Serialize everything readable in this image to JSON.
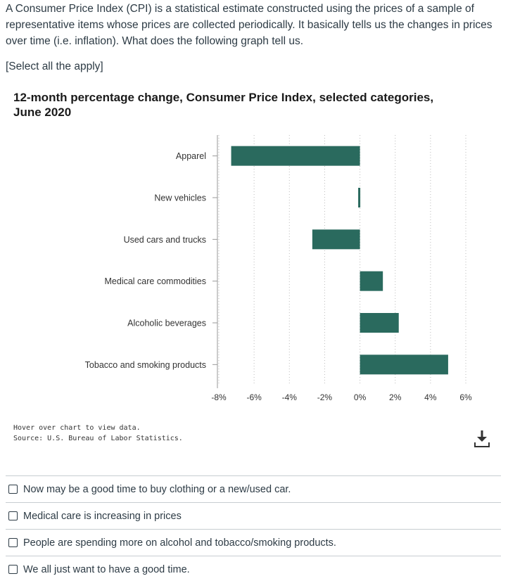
{
  "question": {
    "lines": [
      "A Consumer Price Index (CPI) is a statistical estimate constructed using the prices of a sample of",
      "representative items whose prices are collected periodically. It basically tells us the changes in prices",
      "over time (i.e. inflation). What does the following graph tell us."
    ],
    "instruction": "[Select all the apply]"
  },
  "chart_data": {
    "type": "bar",
    "orientation": "horizontal",
    "title_lines": [
      "12-month percentage change, Consumer Price Index, selected categories,",
      "June 2020"
    ],
    "categories": [
      "Apparel",
      "New vehicles",
      "Used cars and trucks",
      "Medical care commodities",
      "Alcoholic beverages",
      "Tobacco and smoking products"
    ],
    "values": [
      -7.3,
      -0.1,
      -2.7,
      1.3,
      2.2,
      5.0
    ],
    "xlim": [
      -8,
      6
    ],
    "xticks": [
      -8,
      -6,
      -4,
      -2,
      0,
      2,
      4,
      6
    ],
    "tick_labels": [
      "-8%",
      "-6%",
      "-4%",
      "-2%",
      "0%",
      "2%",
      "4%",
      "6%"
    ],
    "grid": "vertical dotted",
    "bar_color": "#2a6a5e",
    "notes": [
      "Hover over chart to view data.",
      "Source: U.S. Bureau of Labor Statistics."
    ]
  },
  "download_icon": "download-icon",
  "answers": [
    "Now may be a good time to buy clothing or a new/used car.",
    "Medical care is increasing in prices",
    "People are spending more on alcohol and tobacco/smoking products.",
    "We all just want to have a good time."
  ]
}
